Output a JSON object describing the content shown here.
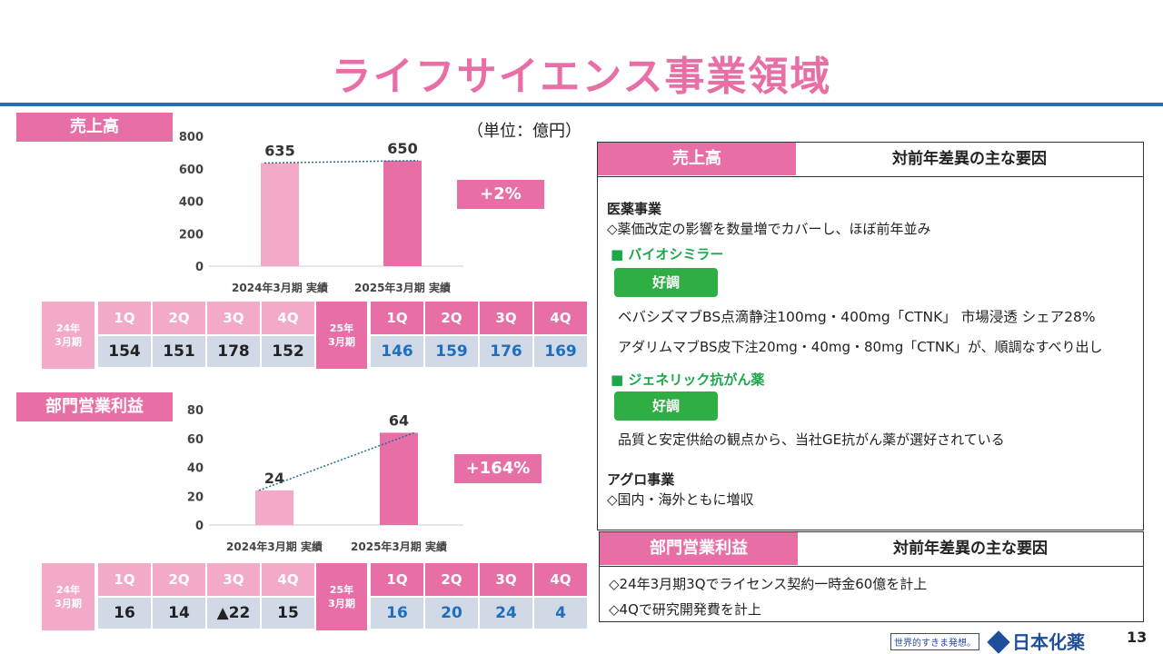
{
  "page_title": "ライフサイエンス事業領域",
  "unit": "（単位：億円）",
  "sales": {
    "label": "売上高",
    "change": "+2%",
    "quarter_table": {
      "label_24": "24年\n3月期",
      "label_25": "25年\n3月期",
      "quarters": [
        "1Q",
        "2Q",
        "3Q",
        "4Q"
      ],
      "values_24": [
        "154",
        "151",
        "178",
        "152"
      ],
      "values_25": [
        "146",
        "159",
        "176",
        "169"
      ]
    }
  },
  "profit": {
    "label": "部門営業利益",
    "change": "+164%",
    "quarter_table": {
      "label_24": "24年\n3月期",
      "label_25": "25年\n3月期",
      "quarters": [
        "1Q",
        "2Q",
        "3Q",
        "4Q"
      ],
      "values_24": [
        "16",
        "14",
        "▲22",
        "15"
      ],
      "values_25": [
        "16",
        "20",
        "24",
        "4"
      ]
    }
  },
  "chart_data": [
    {
      "type": "bar",
      "title": "売上高",
      "categories": [
        "2024年3月期 実績",
        "2025年3月期 実績"
      ],
      "values": [
        635,
        650
      ],
      "value_labels": [
        "635",
        "650"
      ],
      "yticks": [
        "0",
        "200",
        "400",
        "600",
        "800"
      ],
      "ylim": [
        0,
        800
      ],
      "colors": [
        "#f3a9c8",
        "#e86fa6"
      ]
    },
    {
      "type": "bar",
      "title": "部門営業利益",
      "categories": [
        "2024年3月期 実績",
        "2025年3月期 実績"
      ],
      "values": [
        24,
        64
      ],
      "value_labels": [
        "24",
        "64"
      ],
      "yticks": [
        "0",
        "20",
        "40",
        "60",
        "80"
      ],
      "ylim": [
        0,
        80
      ],
      "colors": [
        "#f3a9c8",
        "#e86fa6"
      ]
    }
  ],
  "sales_factors": {
    "header_left": "売上高",
    "header_right": "対前年差異の主な要因",
    "pharma_title": "医薬事業",
    "pharma_text": "◇薬価改定の影響を数量増でカバーし、ほぼ前年並み",
    "biosimilar_title": "■ バイオシミラー",
    "good_label_1": "好調",
    "biosimilar_line1": "ベバシズマブBS点滴静注100mg・400mg「CTNK」 市場浸透 シェア28%",
    "biosimilar_line2": "アダリムマブBS皮下注20mg・40mg・80mg「CTNK」が、順調なすべり出し",
    "generic_title": "■ ジェネリック抗がん薬",
    "good_label_2": "好調",
    "generic_line": "品質と安定供給の観点から、当社GE抗がん薬が選好されている",
    "agro_title": "アグロ事業",
    "agro_text": "◇国内・海外ともに増収"
  },
  "profit_factors": {
    "header_left": "部門営業利益",
    "header_right": "対前年差異の主な要因",
    "line1": "◇24年3月期3Qでライセンス契約一時金60億を計上",
    "line2": "◇4Qで研究開発費を計上"
  },
  "footer": {
    "slogan": "世界的すきま発想。",
    "logo": "日本化薬",
    "page_number": "13"
  }
}
